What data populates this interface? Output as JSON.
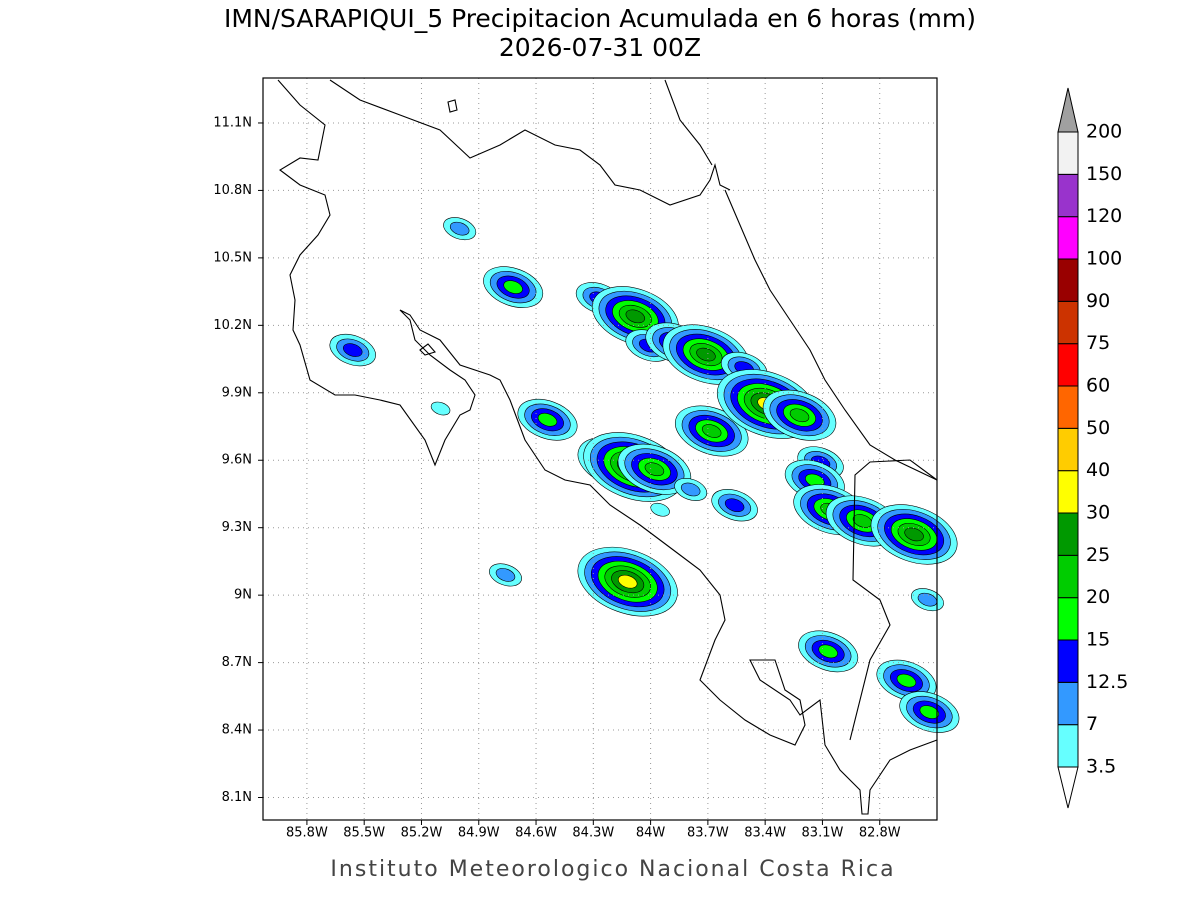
{
  "header": {
    "title": "IMN/SARAPIQUI_5 Precipitacion Acumulada en 6 horas (mm)",
    "subtitle": "2026-07-31 00Z"
  },
  "map": {
    "type": "contour-map",
    "xlim": [
      -86.03,
      -82.5
    ],
    "ylim": [
      8.0,
      11.3
    ],
    "xticks": [
      {
        "value": -85.8,
        "label": "85.8W"
      },
      {
        "value": -85.5,
        "label": "85.5W"
      },
      {
        "value": -85.2,
        "label": "85.2W"
      },
      {
        "value": -84.9,
        "label": "84.9W"
      },
      {
        "value": -84.6,
        "label": "84.6W"
      },
      {
        "value": -84.3,
        "label": "84.3W"
      },
      {
        "value": -84.0,
        "label": "84W"
      },
      {
        "value": -83.7,
        "label": "83.7W"
      },
      {
        "value": -83.4,
        "label": "83.4W"
      },
      {
        "value": -83.1,
        "label": "83.1W"
      },
      {
        "value": -82.8,
        "label": "82.8W"
      }
    ],
    "yticks": [
      {
        "value": 8.1,
        "label": "8.1N"
      },
      {
        "value": 8.4,
        "label": "8.4N"
      },
      {
        "value": 8.7,
        "label": "8.7N"
      },
      {
        "value": 9.0,
        "label": "9N"
      },
      {
        "value": 9.3,
        "label": "9.3N"
      },
      {
        "value": 9.6,
        "label": "9.6N"
      },
      {
        "value": 9.9,
        "label": "9.9N"
      },
      {
        "value": 10.2,
        "label": "10.2N"
      },
      {
        "value": 10.5,
        "label": "10.5N"
      },
      {
        "value": 10.8,
        "label": "10.8N"
      },
      {
        "value": 11.1,
        "label": "11.1N"
      }
    ],
    "grid": true,
    "rain_cells": [
      {
        "lon": -85.56,
        "lat": 10.09,
        "max": 12.5
      },
      {
        "lon": -84.72,
        "lat": 10.37,
        "max": 15
      },
      {
        "lon": -85.0,
        "lat": 10.63,
        "max": 7
      },
      {
        "lon": -84.76,
        "lat": 9.09,
        "max": 7
      },
      {
        "lon": -85.1,
        "lat": 9.83,
        "max": 3.5
      },
      {
        "lon": -84.54,
        "lat": 9.78,
        "max": 15
      },
      {
        "lon": -84.27,
        "lat": 10.32,
        "max": 12.5
      },
      {
        "lon": -84.08,
        "lat": 10.24,
        "max": 25
      },
      {
        "lon": -84.01,
        "lat": 10.11,
        "max": 12.5
      },
      {
        "lon": -83.87,
        "lat": 10.12,
        "max": 15
      },
      {
        "lon": -83.71,
        "lat": 10.07,
        "max": 25
      },
      {
        "lon": -83.51,
        "lat": 10.01,
        "max": 12.5
      },
      {
        "lon": -84.19,
        "lat": 9.59,
        "max": 20
      },
      {
        "lon": -84.09,
        "lat": 9.57,
        "max": 30
      },
      {
        "lon": -83.98,
        "lat": 9.56,
        "max": 20
      },
      {
        "lon": -84.12,
        "lat": 9.06,
        "max": 30
      },
      {
        "lon": -83.68,
        "lat": 9.73,
        "max": 20
      },
      {
        "lon": -83.56,
        "lat": 9.4,
        "max": 12.5
      },
      {
        "lon": -83.39,
        "lat": 9.85,
        "max": 30
      },
      {
        "lon": -83.22,
        "lat": 9.8,
        "max": 20
      },
      {
        "lon": -83.11,
        "lat": 9.59,
        "max": 12.5
      },
      {
        "lon": -83.14,
        "lat": 9.51,
        "max": 15
      },
      {
        "lon": -83.06,
        "lat": 9.38,
        "max": 20
      },
      {
        "lon": -82.89,
        "lat": 9.33,
        "max": 20
      },
      {
        "lon": -82.62,
        "lat": 9.27,
        "max": 25
      },
      {
        "lon": -82.55,
        "lat": 8.98,
        "max": 7
      },
      {
        "lon": -82.66,
        "lat": 8.62,
        "max": 15
      },
      {
        "lon": -82.54,
        "lat": 8.48,
        "max": 15
      },
      {
        "lon": -83.07,
        "lat": 8.75,
        "max": 15
      },
      {
        "lon": -83.79,
        "lat": 9.47,
        "max": 7
      },
      {
        "lon": -83.95,
        "lat": 9.38,
        "max": 3.5
      }
    ]
  },
  "legend": {
    "levels": [
      3.5,
      7,
      12.5,
      15,
      20,
      25,
      30,
      40,
      50,
      60,
      75,
      90,
      100,
      120,
      150,
      200
    ],
    "colors": [
      "#66ffff",
      "#3399ff",
      "#0000ff",
      "#00ff00",
      "#00cc00",
      "#009900",
      "#ffff00",
      "#ffcc00",
      "#ff6600",
      "#ff0000",
      "#cc3300",
      "#990000",
      "#ff00ff",
      "#9933cc",
      "#f2f2f2"
    ],
    "over_color": "#a0a0a0",
    "under_color": "#ffffff"
  },
  "footer": {
    "text": "Instituto Meteorologico Nacional Costa Rica"
  }
}
